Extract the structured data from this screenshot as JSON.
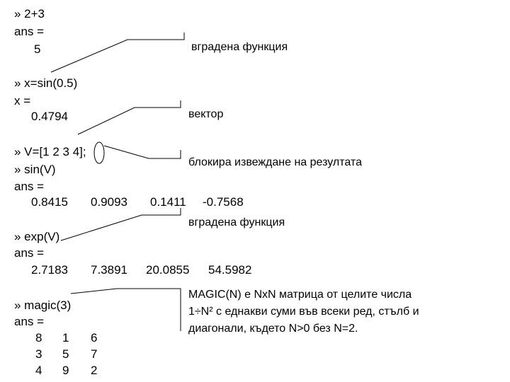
{
  "session": {
    "cmd1": "» 2+3",
    "ans1_label": "ans =",
    "ans1_value": "5",
    "cmd2": "» x=sin(0.5)",
    "x_label": "x =",
    "x_value": "0.4794",
    "cmd3": "» V=[1 2 3 4];",
    "cmd4": "» sin(V)",
    "ans4_label": "ans =",
    "ans4_values": [
      "0.8415",
      "0.9093",
      "0.1411",
      "-0.7568"
    ],
    "cmd5": "» exp(V)",
    "ans5_label": "ans =",
    "ans5_values": [
      "2.7183",
      "7.3891",
      "20.0855",
      "54.5982"
    ],
    "cmd6": "» magic(3)",
    "ans6_label": "ans =",
    "magic_rows": [
      [
        "8",
        "1",
        "6"
      ],
      [
        "3",
        "5",
        "7"
      ],
      [
        "4",
        "9",
        "2"
      ]
    ]
  },
  "annotations": {
    "builtin_function_1": "вградена функция",
    "vector": "вектор",
    "suppress_output": "блокира извеждане на резултата",
    "builtin_function_2": "вградена функция",
    "magic_note_line1": "MAGIC(N) е NxN матрица от целите числа",
    "magic_note_line2": "1÷N² с еднакви суми във всеки ред, стълб и",
    "magic_note_line3": "диагонали, където N>0 без N=2."
  }
}
